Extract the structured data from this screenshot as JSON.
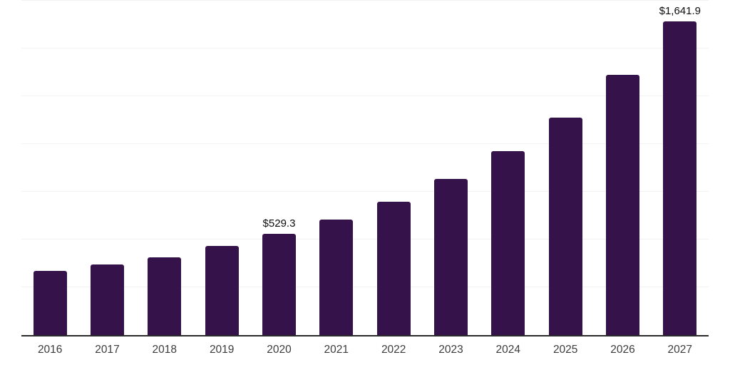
{
  "chart_data": {
    "type": "bar",
    "title": "",
    "xlabel": "",
    "ylabel": "",
    "categories": [
      "2016",
      "2017",
      "2018",
      "2019",
      "2020",
      "2021",
      "2022",
      "2023",
      "2024",
      "2025",
      "2026",
      "2027"
    ],
    "values": [
      335.8,
      369.4,
      406.7,
      466.5,
      529.3,
      604.5,
      697.8,
      817.2,
      962.8,
      1138.1,
      1362.0,
      1641.9
    ],
    "annotations": [
      {
        "category": "2020",
        "text": "$529.3"
      },
      {
        "category": "2027",
        "text": "$1,641.9"
      }
    ],
    "ylim": [
      0,
      1752
    ],
    "gridline_values": [
      250,
      500,
      750,
      1000,
      1250,
      1500,
      1750
    ],
    "grid": true,
    "legend": false,
    "legend_position": "none",
    "bar_color": "#36124a",
    "axis_color": "#2b2b2b",
    "gridline_color": "#f2f2f2",
    "tick_label_color": "#3d3d3d",
    "annotation_color": "#0d0d0d"
  }
}
